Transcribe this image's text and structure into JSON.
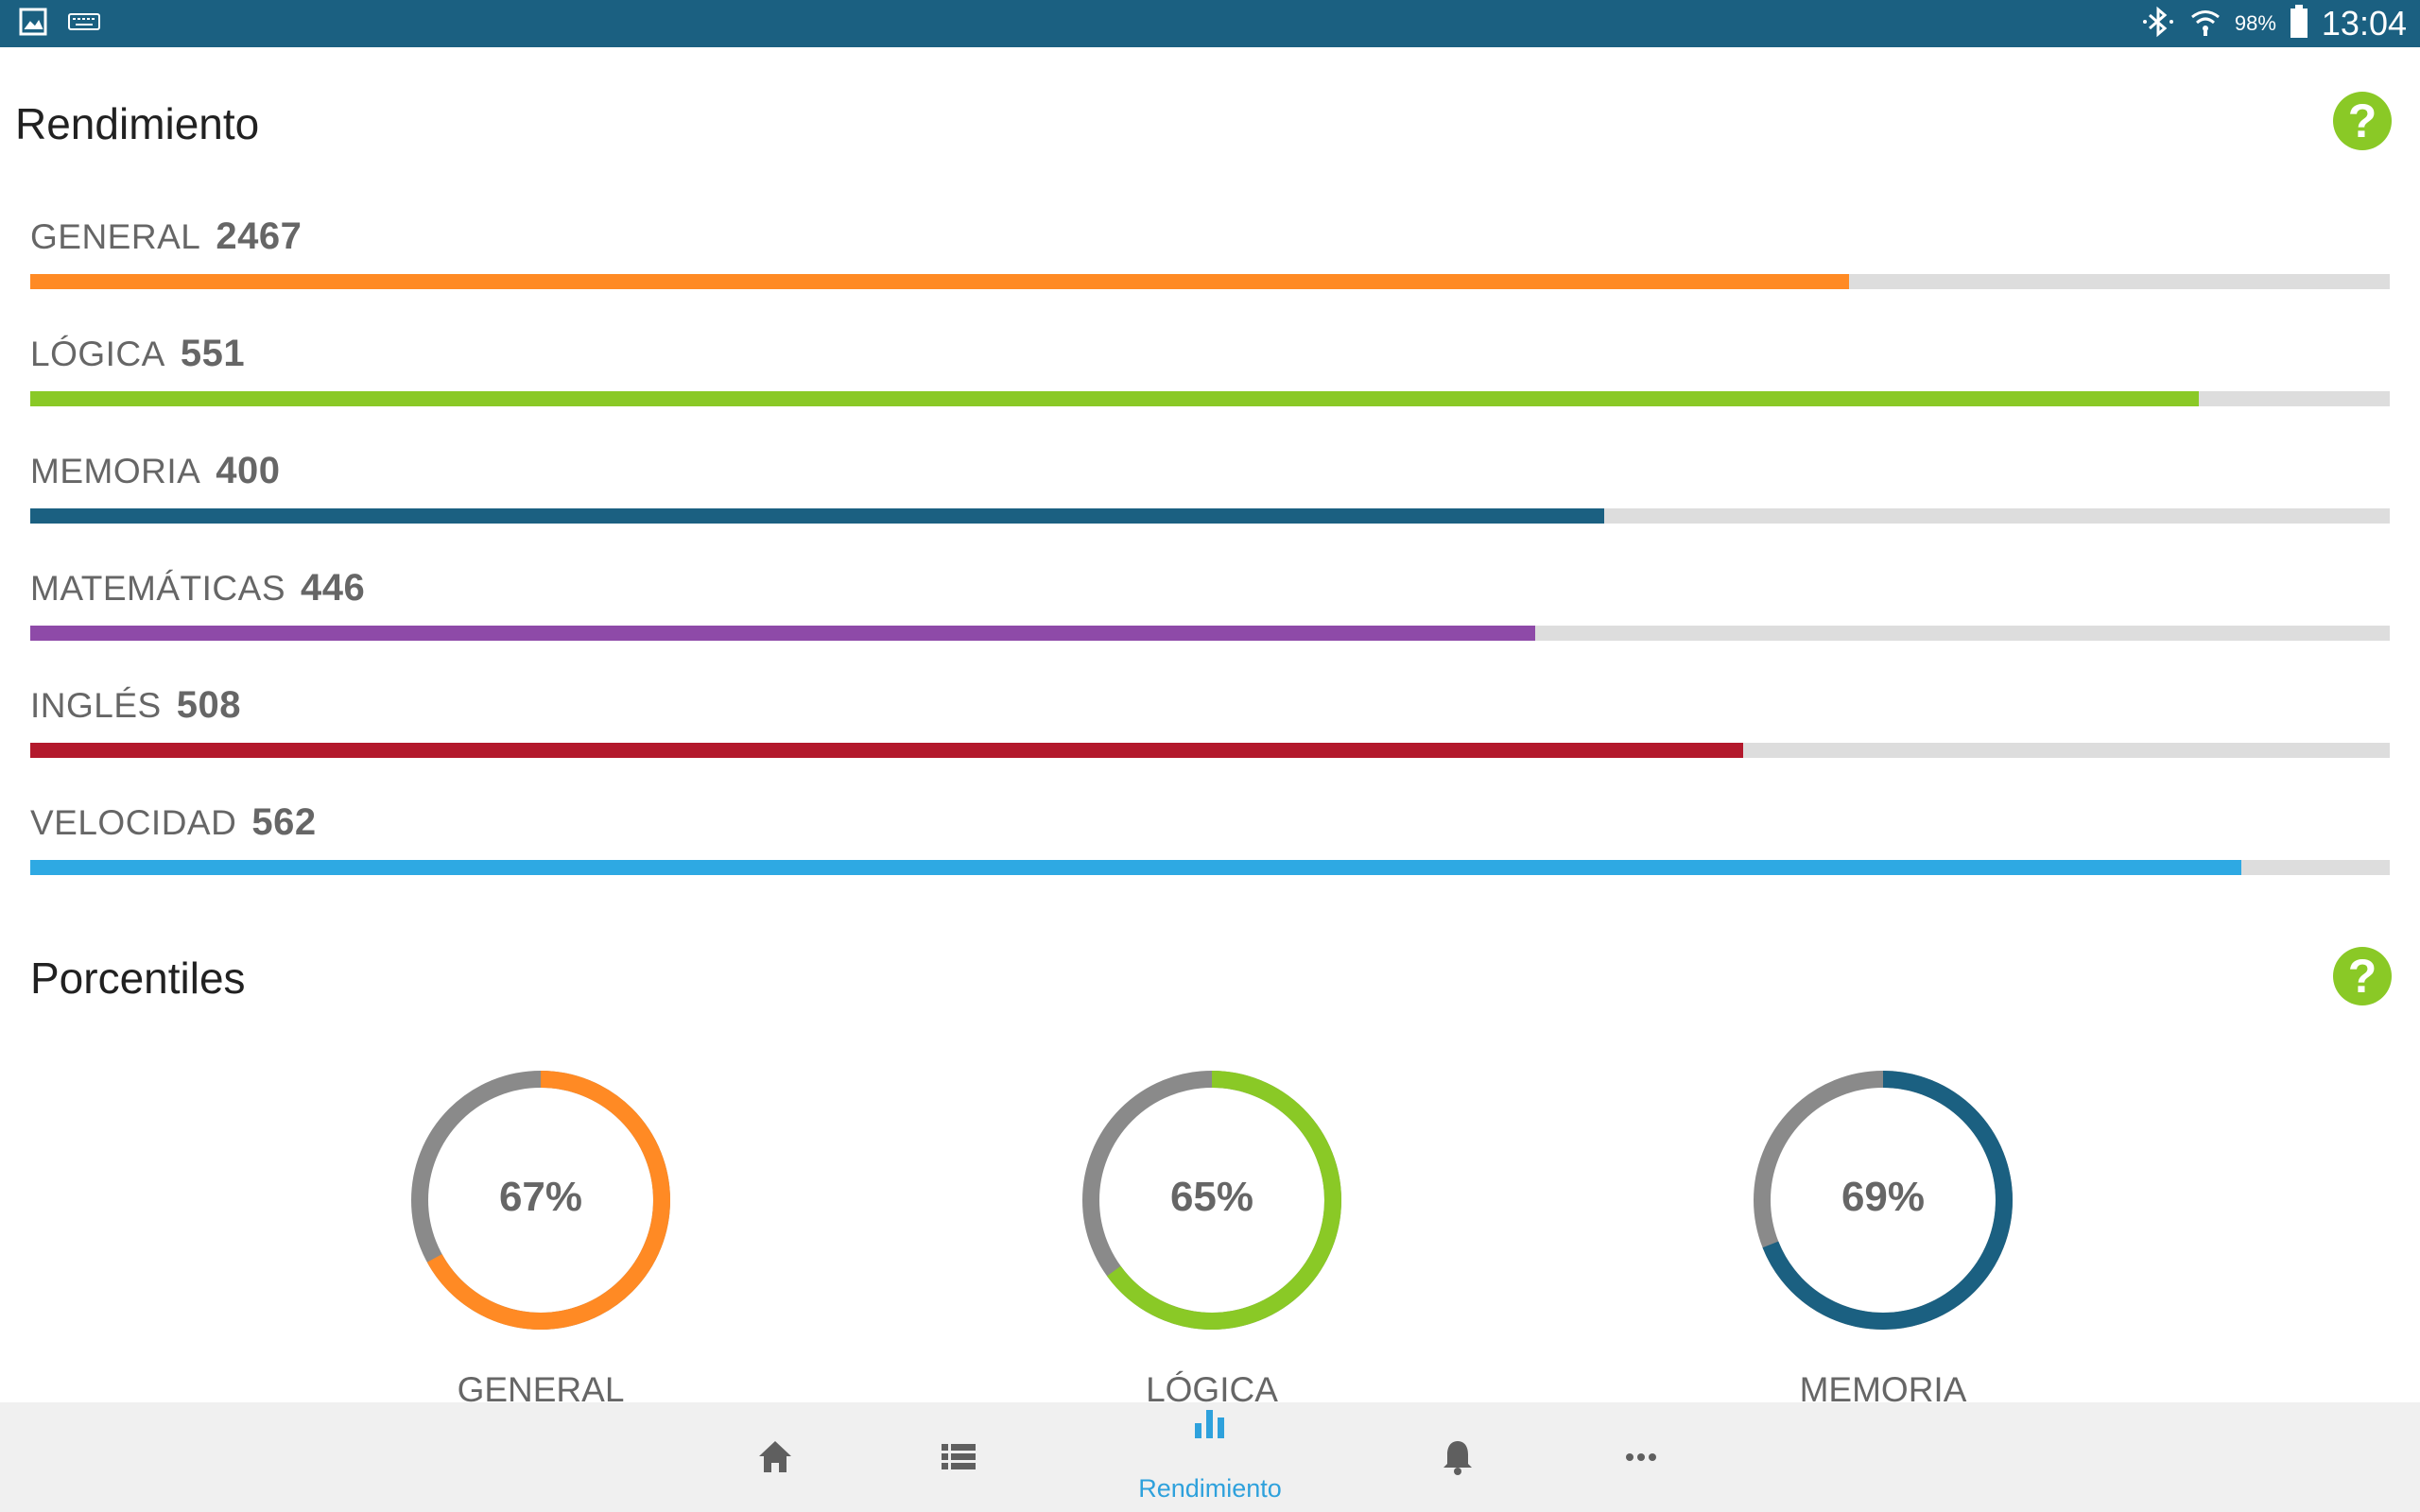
{
  "status_bar": {
    "left_icons": [
      "image-icon",
      "keyboard-icon"
    ],
    "bluetooth_icon": "bluetooth-icon",
    "wifi_icon": "wifi-icon",
    "battery": "98%",
    "time": "13:04"
  },
  "rendimiento": {
    "title": "Rendimiento",
    "help": "?",
    "metrics": [
      {
        "name": "GENERAL",
        "score": "2467",
        "progress": 0.771,
        "color": "#ff8a24"
      },
      {
        "name": "LÓGICA",
        "score": "551",
        "progress": 0.919,
        "color": "#8ac926"
      },
      {
        "name": "MEMORIA",
        "score": "400",
        "progress": 0.667,
        "color": "#1b6081"
      },
      {
        "name": "MATEMÁTICAS",
        "score": "446",
        "progress": 0.638,
        "color": "#8e4aa8"
      },
      {
        "name": "INGLÉS",
        "score": "508",
        "progress": 0.726,
        "color": "#b3192c"
      },
      {
        "name": "VELOCIDAD",
        "score": "562",
        "progress": 0.937,
        "color": "#2ea9e3"
      }
    ]
  },
  "porcentiles": {
    "title": "Porcentiles",
    "help": "?",
    "track_color": "#8a8a8a",
    "gauges": [
      {
        "label": "GENERAL",
        "value_text": "67%",
        "percent": 67,
        "color": "#ff8a24"
      },
      {
        "label": "LÓGICA",
        "value_text": "65%",
        "percent": 65,
        "color": "#8ac926"
      },
      {
        "label": "MEMORIA",
        "value_text": "69%",
        "percent": 69,
        "color": "#1b6081"
      }
    ]
  },
  "bottom_nav": {
    "items": [
      {
        "icon": "home-icon",
        "label": "",
        "active": false
      },
      {
        "icon": "list-icon",
        "label": "",
        "active": false
      },
      {
        "icon": "bar-chart-icon",
        "label": "Rendimiento",
        "active": true
      },
      {
        "icon": "bell-icon",
        "label": "",
        "active": false
      },
      {
        "icon": "more-icon",
        "label": "",
        "active": false
      }
    ],
    "inactive_color": "#5f5f5f",
    "active_color": "#2ea1dc"
  }
}
